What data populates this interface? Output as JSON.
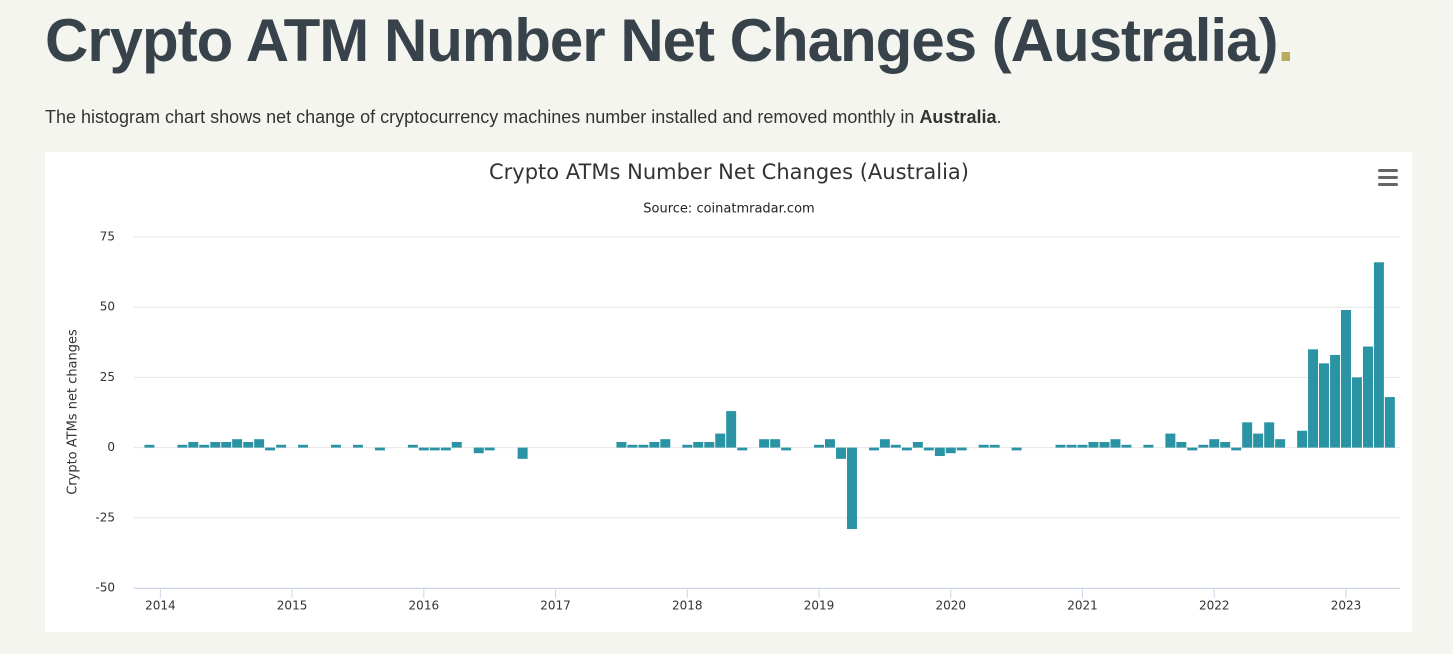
{
  "header": {
    "title": "Crypto ATM Number Net Changes (Australia)",
    "title_dot": ".",
    "lead_text": "The histogram chart shows net change of cryptocurrency machines number installed and removed monthly in ",
    "lead_bold": "Australia",
    "lead_end": "."
  },
  "chart_data": {
    "type": "bar",
    "title": "Crypto ATMs Number Net Changes (Australia)",
    "subtitle": "Source: coinatmradar.com",
    "y_label": "Crypto ATMs net changes",
    "color": "#2b94a4",
    "grid": true,
    "ylim": [
      -50,
      75
    ],
    "yticks": [
      -50,
      -25,
      0,
      25,
      50,
      75
    ],
    "xlim": [
      2013.8,
      2023.41
    ],
    "xticks": [
      2014,
      2015,
      2016,
      2017,
      2018,
      2019,
      2020,
      2021,
      2022,
      2023
    ],
    "x": [
      2013.917,
      2014.0,
      2014.083,
      2014.167,
      2014.25,
      2014.333,
      2014.417,
      2014.5,
      2014.583,
      2014.667,
      2014.75,
      2014.833,
      2014.917,
      2015.0,
      2015.083,
      2015.167,
      2015.25,
      2015.333,
      2015.417,
      2015.5,
      2015.583,
      2015.667,
      2015.75,
      2015.833,
      2015.917,
      2016.0,
      2016.083,
      2016.167,
      2016.25,
      2016.333,
      2016.417,
      2016.5,
      2016.583,
      2016.667,
      2016.75,
      2016.833,
      2016.917,
      2017.0,
      2017.083,
      2017.167,
      2017.25,
      2017.333,
      2017.417,
      2017.5,
      2017.583,
      2017.667,
      2017.75,
      2017.833,
      2017.917,
      2018.0,
      2018.083,
      2018.167,
      2018.25,
      2018.333,
      2018.417,
      2018.5,
      2018.583,
      2018.667,
      2018.75,
      2018.833,
      2018.917,
      2019.0,
      2019.083,
      2019.167,
      2019.25,
      2019.333,
      2019.417,
      2019.5,
      2019.583,
      2019.667,
      2019.75,
      2019.833,
      2019.917,
      2020.0,
      2020.083,
      2020.167,
      2020.25,
      2020.333,
      2020.417,
      2020.5,
      2020.583,
      2020.667,
      2020.75,
      2020.833,
      2020.917,
      2021.0,
      2021.083,
      2021.167,
      2021.25,
      2021.333,
      2021.417,
      2021.5,
      2021.583,
      2021.667,
      2021.75,
      2021.833,
      2021.917,
      2022.0,
      2022.083,
      2022.167,
      2022.25,
      2022.333,
      2022.417,
      2022.5,
      2022.583,
      2022.667,
      2022.75,
      2022.833,
      2022.917,
      2023.0,
      2023.083,
      2023.167,
      2023.25,
      2023.333
    ],
    "values": [
      1,
      0,
      0,
      1,
      2,
      1,
      2,
      2,
      3,
      2,
      3,
      -1,
      1,
      0,
      1,
      0,
      0,
      1,
      0,
      1,
      0,
      -1,
      0,
      0,
      1,
      -1,
      -1,
      -1,
      2,
      0,
      -2,
      -1,
      0,
      0,
      -4,
      0,
      0,
      0,
      0,
      0,
      0,
      0,
      0,
      2,
      1,
      1,
      2,
      3,
      0,
      1,
      2,
      2,
      5,
      13,
      -1,
      0,
      3,
      3,
      -1,
      0,
      0,
      1,
      3,
      -4,
      -29,
      0,
      -1,
      3,
      1,
      -1,
      2,
      -1,
      -3,
      -2,
      -1,
      0,
      1,
      1,
      0,
      -1,
      0,
      0,
      0,
      1,
      1,
      1,
      2,
      2,
      3,
      1,
      0,
      1,
      0,
      5,
      2,
      -1,
      1,
      3,
      2,
      -1,
      9,
      5,
      9,
      3,
      0,
      6,
      35,
      30,
      33,
      49,
      25,
      36,
      66,
      18
    ]
  }
}
